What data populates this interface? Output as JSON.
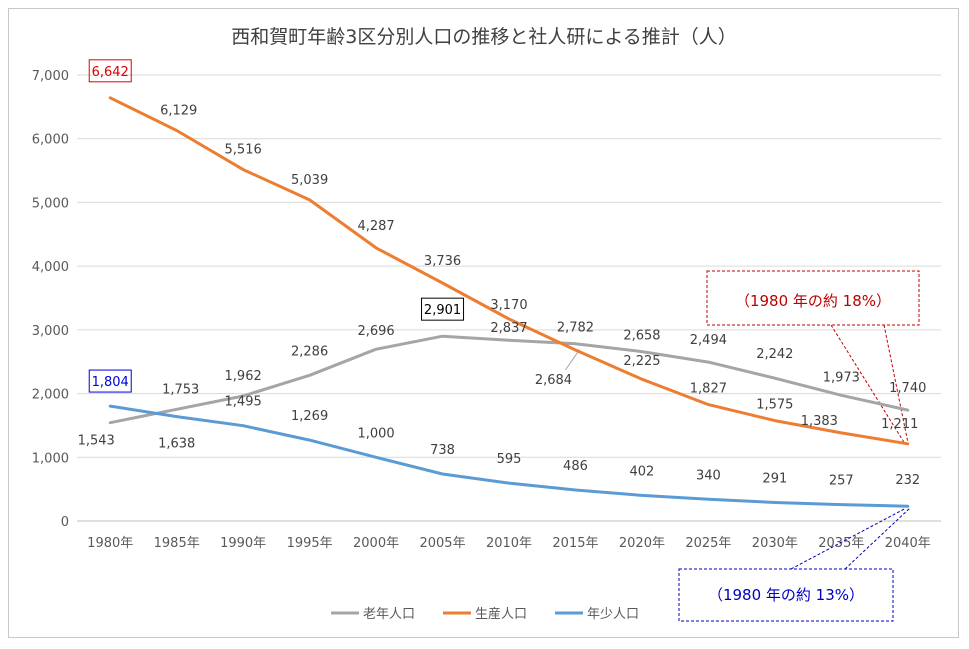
{
  "chart_data": {
    "type": "line",
    "title": "西和賀町年齢3区分別人口の推移と社人研による推計（人）",
    "categories": [
      "1980年",
      "1985年",
      "1990年",
      "1995年",
      "2000年",
      "2005年",
      "2010年",
      "2015年",
      "2020年",
      "2025年",
      "2030年",
      "2035年",
      "2040年"
    ],
    "ylim": [
      0,
      7000
    ],
    "yticks": [
      "0",
      "1,000",
      "2,000",
      "3,000",
      "4,000",
      "5,000",
      "6,000",
      "7,000"
    ],
    "grid": true,
    "legend_position": "bottom",
    "series": [
      {
        "name": "老年人口",
        "color": "#a5a5a5",
        "values": [
          1543,
          1753,
          1962,
          2286,
          2696,
          2901,
          2837,
          2782,
          2658,
          2494,
          2242,
          1973,
          1740
        ],
        "labels": [
          "1,543",
          "1,753",
          "1,962",
          "2,286",
          "2,696",
          "2,901",
          "2,837",
          "2,782",
          "2,658",
          "2,494",
          "2,242",
          "1,973",
          "1,740"
        ]
      },
      {
        "name": "生産人口",
        "color": "#ed7d31",
        "values": [
          6642,
          6129,
          5516,
          5039,
          4287,
          3736,
          3170,
          2684,
          2225,
          1827,
          1575,
          1383,
          1211
        ],
        "labels": [
          "6,642",
          "6,129",
          "5,516",
          "5,039",
          "4,287",
          "3,736",
          "3,170",
          "2,684",
          "2,225",
          "1,827",
          "1,575",
          "1,383",
          "1,211"
        ]
      },
      {
        "name": "年少人口",
        "color": "#5b9bd5",
        "values": [
          1804,
          1638,
          1495,
          1269,
          1000,
          738,
          595,
          486,
          402,
          340,
          291,
          257,
          232
        ],
        "labels": [
          "1,804",
          "1,638",
          "1,495",
          "1,269",
          "1,000",
          "738",
          "595",
          "486",
          "402",
          "340",
          "291",
          "257",
          "232"
        ]
      }
    ],
    "annotations": [
      {
        "text": "（1980 年の約 18%）",
        "color": "#c00000",
        "series": "生産人口"
      },
      {
        "text": "（1980 年の約 13%）",
        "color": "#0000c0",
        "series": "年少人口"
      }
    ]
  }
}
